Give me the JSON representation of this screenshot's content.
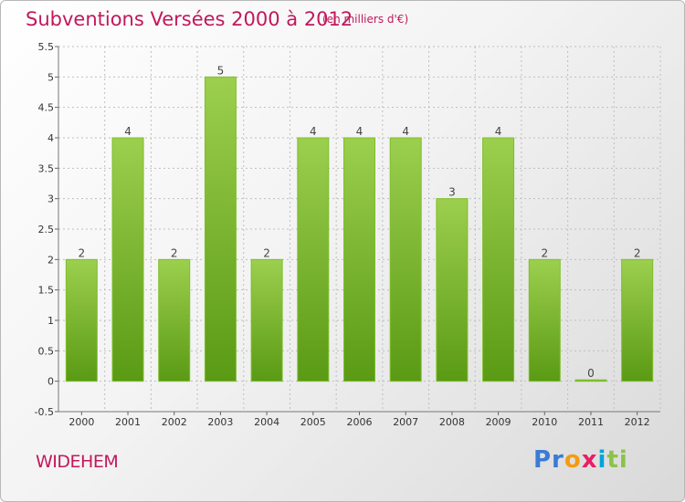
{
  "header": {
    "title": "Subventions Versées 2000 à 2012",
    "subtitle": "(en milliers d'€)"
  },
  "footer": {
    "commune": "WIDEHEM",
    "logo_parts": [
      "Pr",
      "o",
      "x",
      "i",
      "ti"
    ]
  },
  "colors": {
    "title": "#c2185b",
    "bar_light": "#9ccf4e",
    "bar_dark": "#5a9a14",
    "grid": "#bfbfbf"
  },
  "chart_data": {
    "type": "bar",
    "categories": [
      "2000",
      "2001",
      "2002",
      "2003",
      "2004",
      "2005",
      "2006",
      "2007",
      "2008",
      "2009",
      "2010",
      "2011",
      "2012"
    ],
    "values": [
      2,
      4,
      2,
      5,
      2,
      4,
      4,
      4,
      3,
      4,
      2,
      0,
      2
    ],
    "data_labels": [
      "2",
      "4",
      "2",
      "5",
      "2",
      "4",
      "4",
      "4",
      "3",
      "4",
      "2",
      "0",
      "2"
    ],
    "title": "Subventions Versées 2000 à 2012",
    "ylim": [
      -0.5,
      5.5
    ],
    "yticks": [
      -0.5,
      0,
      0.5,
      1,
      1.5,
      2,
      2.5,
      3,
      3.5,
      4,
      4.5,
      5,
      5.5
    ],
    "ytick_labels": [
      "-0.5",
      "0",
      "0.5",
      "1",
      "1.5",
      "2",
      "2.5",
      "3",
      "3.5",
      "4",
      "4.5",
      "5",
      "5.5"
    ],
    "grid": true,
    "legend": "none"
  }
}
